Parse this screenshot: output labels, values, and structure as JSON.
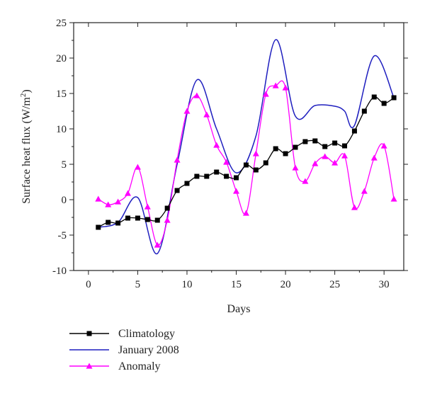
{
  "chart_data": {
    "type": "line",
    "xlabel": "Days",
    "ylabel": "Surface heat flux (W/m²)",
    "ylabel_main": "Surface heat flux (W/m",
    "ylabel_sup": "2",
    "ylabel_close": ")",
    "xlim": [
      -1.5,
      32
    ],
    "ylim": [
      -10,
      25
    ],
    "xticks": [
      0,
      5,
      10,
      15,
      20,
      25,
      30
    ],
    "yticks": [
      -10,
      -5,
      0,
      5,
      10,
      15,
      20,
      25
    ],
    "legend_position": "bottom-left",
    "series": [
      {
        "name": "Climatology",
        "color": "#000000",
        "marker": "square",
        "x": [
          1,
          2,
          3,
          4,
          5,
          6,
          7,
          8,
          9,
          10,
          11,
          12,
          13,
          14,
          15,
          16,
          17,
          18,
          19,
          20,
          21,
          22,
          23,
          24,
          25,
          26,
          27,
          28,
          29,
          30,
          31
        ],
        "values": [
          -3.9,
          -3.2,
          -3.3,
          -2.6,
          -2.6,
          -2.8,
          -2.9,
          -1.2,
          1.3,
          2.3,
          3.3,
          3.3,
          3.9,
          3.3,
          3.1,
          4.9,
          4.2,
          5.2,
          7.2,
          6.5,
          7.4,
          8.2,
          8.3,
          7.5,
          8.0,
          7.6,
          9.7,
          12.5,
          14.5,
          13.6,
          14.4
        ]
      },
      {
        "name": "January 2008",
        "color": "#1f1fbf",
        "marker": "none",
        "x": [
          1,
          3,
          5,
          7,
          9,
          11,
          13,
          15,
          17,
          19,
          21,
          23,
          25,
          26,
          27,
          29,
          31
        ],
        "values": [
          -3.9,
          -3.2,
          0.3,
          -7.6,
          5.0,
          16.9,
          10.0,
          3.8,
          9.0,
          22.6,
          11.8,
          13.3,
          13.2,
          12.5,
          10.5,
          20.3,
          14.4
        ]
      },
      {
        "name": "Anomaly",
        "color": "#ff00ff",
        "marker": "triangle",
        "x": [
          1,
          2,
          3,
          4,
          5,
          6,
          7,
          8,
          9,
          10,
          11,
          12,
          13,
          14,
          15,
          16,
          17,
          18,
          19,
          20,
          21,
          22,
          23,
          24,
          25,
          26,
          27,
          28,
          29,
          30,
          31
        ],
        "values": [
          0.1,
          -0.7,
          -0.3,
          0.9,
          4.6,
          -1.0,
          -6.4,
          -2.9,
          5.6,
          12.5,
          14.7,
          12.0,
          7.7,
          5.3,
          1.2,
          -1.9,
          6.5,
          14.9,
          16.1,
          15.8,
          4.5,
          2.6,
          5.1,
          6.1,
          5.2,
          6.2,
          -1.1,
          1.2,
          5.9,
          7.6,
          0.1
        ]
      }
    ]
  }
}
